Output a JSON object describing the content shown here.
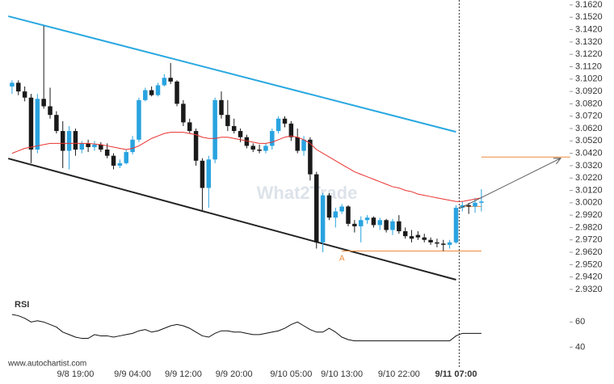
{
  "chart_data": {
    "type": "candlestick",
    "categories": [
      null,
      null,
      null,
      null,
      null,
      null,
      null,
      null,
      null,
      null,
      "9/8 19:00",
      null,
      null,
      null,
      null,
      null,
      null,
      null,
      null,
      "9/9 04:00",
      null,
      null,
      null,
      null,
      null,
      null,
      null,
      "9/9 12:00",
      null,
      null,
      null,
      null,
      null,
      null,
      null,
      "9/9 20:00",
      null,
      null,
      null,
      null,
      null,
      null,
      null,
      null,
      "9/10 05:00",
      null,
      null,
      null,
      null,
      null,
      null,
      null,
      "9/10 13:00",
      null,
      null,
      null,
      null,
      null,
      null,
      null,
      null,
      "9/10 22:00",
      null,
      null,
      null,
      null,
      null,
      null,
      null,
      null,
      "9/11 07:00",
      null,
      null,
      null,
      null
    ],
    "highlight_category": 70,
    "xlim": [
      -1.9,
      87.9
    ],
    "ylim": [
      2.9274,
      3.1659
    ],
    "yticks": [
      {
        "value": 3.162,
        "label": "3.1620"
      },
      {
        "value": 3.152,
        "label": "3.1520"
      },
      {
        "value": 3.142,
        "label": "3.1420"
      },
      {
        "value": 3.132,
        "label": "3.1320"
      },
      {
        "value": 3.122,
        "label": "3.1220"
      },
      {
        "value": 3.112,
        "label": "3.1120"
      },
      {
        "value": 3.102,
        "label": "3.1020"
      },
      {
        "value": 3.092,
        "label": "3.0920"
      },
      {
        "value": 3.082,
        "label": "3.0820"
      },
      {
        "value": 3.072,
        "label": "3.0720"
      },
      {
        "value": 3.062,
        "label": "3.0620"
      },
      {
        "value": 3.052,
        "label": "3.0520"
      },
      {
        "value": 3.042,
        "label": "3.0420"
      },
      {
        "value": 3.032,
        "label": "3.0320"
      },
      {
        "value": 3.022,
        "label": "3.0220"
      },
      {
        "value": 3.012,
        "label": "3.0120"
      },
      {
        "value": 3.002,
        "label": "3.0020"
      },
      {
        "value": 2.992,
        "label": "2.9920"
      },
      {
        "value": 2.982,
        "label": "2.9820"
      },
      {
        "value": 2.972,
        "label": "2.9720"
      },
      {
        "value": 2.962,
        "label": "2.9620"
      },
      {
        "value": 2.952,
        "label": "2.9520"
      },
      {
        "value": 2.942,
        "label": "2.9420"
      },
      {
        "value": 2.932,
        "label": "2.9320"
      }
    ],
    "up_color": "#29a3e0",
    "down_color": "#1a1a1a",
    "ohlc": [
      [
        3.096,
        3.101,
        3.09,
        3.099
      ],
      [
        3.099,
        3.101,
        3.089,
        3.092
      ],
      [
        3.092,
        3.096,
        3.084,
        3.087
      ],
      [
        3.087,
        3.09,
        3.034,
        3.045
      ],
      [
        3.045,
        3.09,
        3.042,
        3.086
      ],
      [
        3.086,
        3.145,
        3.078,
        3.08
      ],
      [
        3.08,
        3.095,
        3.07,
        3.073
      ],
      [
        3.073,
        3.076,
        3.058,
        3.06
      ],
      [
        3.06,
        3.068,
        3.03,
        3.044
      ],
      [
        3.044,
        3.064,
        3.029,
        3.06
      ],
      [
        3.06,
        3.062,
        3.04,
        3.045
      ],
      [
        3.045,
        3.052,
        3.042,
        3.05
      ],
      [
        3.05,
        3.053,
        3.043,
        3.047
      ],
      [
        3.047,
        3.052,
        3.044,
        3.049
      ],
      [
        3.049,
        3.051,
        3.043,
        3.045
      ],
      [
        3.045,
        3.05,
        3.038,
        3.04
      ],
      [
        3.04,
        3.042,
        3.029,
        3.032
      ],
      [
        3.032,
        3.037,
        3.03,
        3.034
      ],
      [
        3.034,
        3.045,
        3.033,
        3.043
      ],
      [
        3.043,
        3.056,
        3.041,
        3.053
      ],
      [
        3.053,
        3.087,
        3.051,
        3.085
      ],
      [
        3.085,
        3.095,
        3.084,
        3.093
      ],
      [
        3.093,
        3.096,
        3.088,
        3.089
      ],
      [
        3.089,
        3.099,
        3.088,
        3.097
      ],
      [
        3.097,
        3.106,
        3.096,
        3.103
      ],
      [
        3.103,
        3.115,
        3.098,
        3.1
      ],
      [
        3.1,
        3.101,
        3.08,
        3.082
      ],
      [
        3.082,
        3.085,
        3.064,
        3.067
      ],
      [
        3.067,
        3.07,
        3.058,
        3.06
      ],
      [
        3.06,
        3.062,
        3.032,
        3.036
      ],
      [
        3.036,
        3.038,
        2.996,
        3.014
      ],
      [
        3.014,
        3.04,
        2.998,
        3.037
      ],
      [
        3.037,
        3.087,
        3.034,
        3.085
      ],
      [
        3.085,
        3.092,
        3.07,
        3.073
      ],
      [
        3.073,
        3.085,
        3.06,
        3.064
      ],
      [
        3.064,
        3.07,
        3.058,
        3.06
      ],
      [
        3.06,
        3.062,
        3.051,
        3.055
      ],
      [
        3.055,
        3.057,
        3.046,
        3.048
      ],
      [
        3.048,
        3.05,
        3.043,
        3.045
      ],
      [
        3.045,
        3.049,
        3.042,
        3.044
      ],
      [
        3.044,
        3.05,
        3.042,
        3.048
      ],
      [
        3.048,
        3.062,
        3.045,
        3.06
      ],
      [
        3.06,
        3.072,
        3.058,
        3.07
      ],
      [
        3.07,
        3.072,
        3.063,
        3.066
      ],
      [
        3.066,
        3.068,
        3.052,
        3.055
      ],
      [
        3.055,
        3.062,
        3.042,
        3.044
      ],
      [
        3.044,
        3.056,
        3.04,
        3.053
      ],
      [
        3.053,
        3.055,
        3.02,
        3.025
      ],
      [
        3.025,
        3.027,
        2.965,
        2.97
      ],
      [
        2.97,
        3.01,
        2.962,
        3.008
      ],
      [
        3.008,
        3.01,
        2.988,
        2.99
      ],
      [
        2.99,
        2.998,
        2.982,
        2.995
      ],
      [
        2.995,
        3.001,
        2.993,
        2.999
      ],
      [
        2.999,
        3.0,
        2.983,
        2.985
      ],
      [
        2.985,
        2.988,
        2.978,
        2.983
      ],
      [
        2.983,
        2.991,
        2.97,
        2.988
      ],
      [
        2.988,
        2.992,
        2.985,
        2.99
      ],
      [
        2.99,
        2.991,
        2.982,
        2.984
      ],
      [
        2.984,
        2.99,
        2.98,
        2.988
      ],
      [
        2.988,
        2.989,
        2.978,
        2.98
      ],
      [
        2.98,
        2.989,
        2.976,
        2.987
      ],
      [
        2.987,
        2.992,
        2.977,
        2.979
      ],
      [
        2.979,
        2.982,
        2.973,
        2.975
      ],
      [
        2.975,
        2.98,
        2.97,
        2.973
      ],
      [
        2.976,
        2.979,
        2.972,
        2.974
      ],
      [
        2.974,
        2.977,
        2.97,
        2.972
      ],
      [
        2.972,
        2.974,
        2.968,
        2.97
      ],
      [
        2.97,
        2.973,
        2.966,
        2.969
      ],
      [
        2.969,
        2.972,
        2.963,
        2.968
      ],
      [
        2.968,
        2.972,
        2.965,
        2.97
      ],
      [
        2.97,
        3.0,
        2.969,
        2.998
      ],
      [
        2.998,
        3.003,
        2.995,
        3.0
      ],
      [
        3.0,
        3.002,
        2.993,
        2.999
      ],
      [
        2.999,
        3.006,
        2.994,
        3.002
      ],
      [
        3.002,
        3.013,
        2.995,
        3.003
      ]
    ],
    "moving_average": {
      "color": "#e8312f",
      "values": [
        3.042,
        3.044,
        3.046,
        3.047,
        3.048,
        3.049,
        3.05,
        3.05,
        3.05,
        3.05,
        3.05,
        3.05,
        3.05,
        3.0495,
        3.049,
        3.048,
        3.047,
        3.046,
        3.045,
        3.046,
        3.048,
        3.051,
        3.054,
        3.056,
        3.058,
        3.059,
        3.059,
        3.059,
        3.058,
        3.057,
        3.055,
        3.054,
        3.054,
        3.055,
        3.055,
        3.054,
        3.053,
        3.052,
        3.051,
        3.05,
        3.05,
        3.051,
        3.053,
        3.055,
        3.056,
        3.055,
        3.053,
        3.05,
        3.045,
        3.042,
        3.039,
        3.036,
        3.033,
        3.03,
        3.027,
        3.025,
        3.023,
        3.021,
        3.019,
        3.017,
        3.015,
        3.014,
        3.012,
        3.011,
        3.009,
        3.008,
        3.007,
        3.006,
        3.005,
        3.004,
        3.003,
        3.003,
        3.004,
        3.005,
        3.006
      ]
    },
    "trendlines": [
      {
        "color": "#29a8e0",
        "x": [
          -0.6,
          70
        ],
        "values": [
          3.1528,
          3.0593
        ]
      },
      {
        "color": "#222222",
        "x": [
          -0.6,
          70
        ],
        "values": [
          3.0378,
          2.9398
        ]
      }
    ],
    "levels": [
      {
        "color": "#f08a3c",
        "x": [
          52,
          74
        ],
        "value": 2.963
      },
      {
        "color": "#f08a3c",
        "x": [
          70.5,
          74
        ],
        "value": 2.999
      },
      {
        "color": "#f08a3c",
        "x": [
          74,
          88
        ],
        "value": 3.039
      }
    ],
    "arrow": {
      "color": "#555555",
      "x": [
        70.5,
        86.5
      ],
      "values": [
        2.9973,
        3.038
      ]
    },
    "current_x": 70.5,
    "point_label": {
      "text": "A",
      "x": 52,
      "value": 2.957,
      "color": "#f08a3c"
    },
    "watermark": "What2Trade",
    "rsi": {
      "label": "RSI",
      "color": "#111111",
      "ylim": [
        30,
        75
      ],
      "yticks": [
        60,
        40
      ],
      "values": [
        66,
        65,
        63,
        60,
        61,
        60,
        58,
        56,
        52,
        50,
        48,
        47,
        47,
        50,
        49,
        49,
        48,
        49,
        50,
        51,
        53,
        54,
        52,
        53,
        55,
        57,
        58,
        57,
        55,
        52,
        49,
        48,
        51,
        53,
        53,
        52,
        52,
        51,
        50,
        50,
        51,
        52,
        53,
        55,
        58,
        60,
        57,
        54,
        52,
        52,
        55,
        52,
        48,
        46,
        45,
        45,
        45,
        45,
        45,
        45,
        45,
        45,
        45,
        45,
        45,
        45,
        45,
        45,
        45,
        45,
        49,
        51,
        51,
        51,
        51
      ]
    },
    "source": "www.autochartist.com"
  }
}
